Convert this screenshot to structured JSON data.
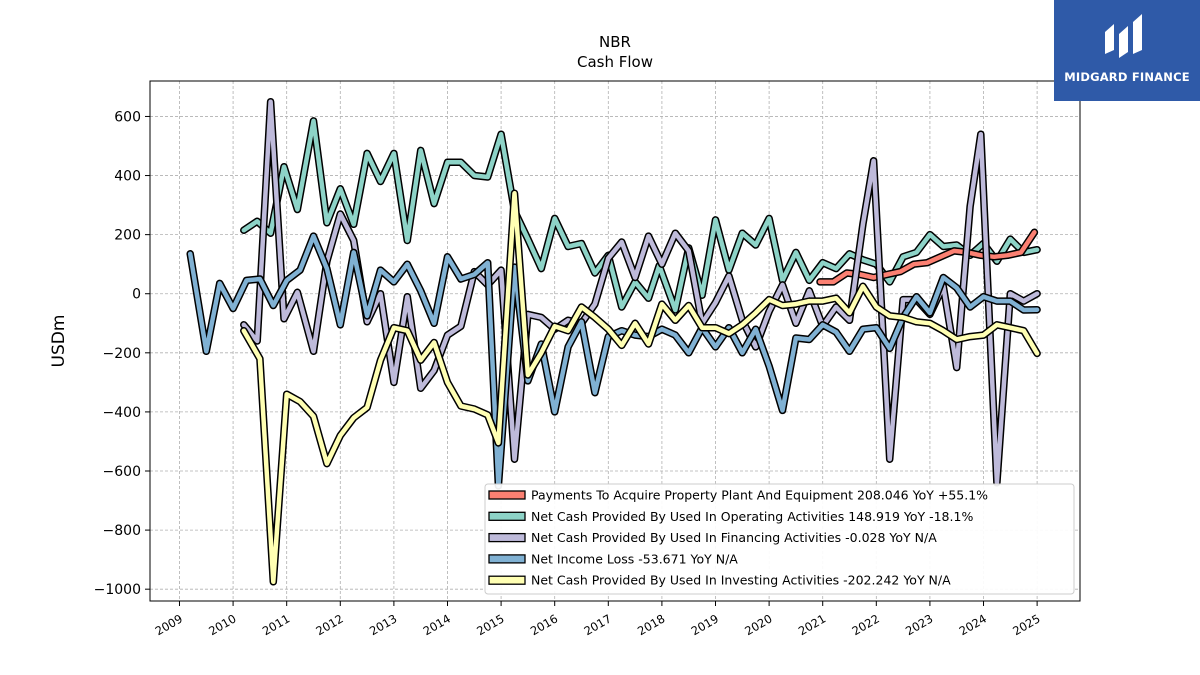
{
  "title": "NBR",
  "subtitle": "Cash Flow",
  "logo": {
    "text": "MIDGARD FINANCE",
    "bg": "#2f5aa8"
  },
  "chart_data": {
    "type": "line",
    "ylabel": "USDm",
    "ylim": [
      -1040,
      720
    ],
    "xlim": [
      2008.45,
      2025.8
    ],
    "yticks": [
      600,
      400,
      200,
      0,
      -200,
      -400,
      -600,
      -800,
      -1000
    ],
    "ytick_labels": [
      "600",
      "400",
      "200",
      "0",
      "−200",
      "−400",
      "−600",
      "−800",
      "−1000"
    ],
    "xticks": [
      2009,
      2010,
      2011,
      2012,
      2013,
      2014,
      2015,
      2016,
      2017,
      2018,
      2019,
      2020,
      2021,
      2022,
      2023,
      2024,
      2025
    ],
    "xtick_labels": [
      "2009",
      "2010",
      "2011",
      "2012",
      "2013",
      "2014",
      "2015",
      "2016",
      "2017",
      "2018",
      "2019",
      "2020",
      "2021",
      "2022",
      "2023",
      "2024",
      "2025"
    ],
    "grid": true,
    "legend_position": "bottom-right",
    "series": [
      {
        "name": "Net Cash Provided By Used In Operating Activities",
        "legend": "Net Cash Provided By Used In Operating Activities  148.919 YoY -18.1%",
        "color": "#8dd3c7",
        "points": [
          [
            2010.2,
            215
          ],
          [
            2010.45,
            245
          ],
          [
            2010.7,
            205
          ],
          [
            2010.95,
            430
          ],
          [
            2011.2,
            285
          ],
          [
            2011.5,
            585
          ],
          [
            2011.75,
            240
          ],
          [
            2012.0,
            355
          ],
          [
            2012.25,
            235
          ],
          [
            2012.5,
            475
          ],
          [
            2012.75,
            380
          ],
          [
            2013.0,
            475
          ],
          [
            2013.25,
            180
          ],
          [
            2013.5,
            485
          ],
          [
            2013.75,
            305
          ],
          [
            2014.0,
            445
          ],
          [
            2014.25,
            445
          ],
          [
            2014.5,
            400
          ],
          [
            2014.75,
            395
          ],
          [
            2015.0,
            540
          ],
          [
            2015.25,
            280
          ],
          [
            2015.5,
            185
          ],
          [
            2015.75,
            85
          ],
          [
            2016.0,
            255
          ],
          [
            2016.25,
            160
          ],
          [
            2016.5,
            170
          ],
          [
            2016.75,
            70
          ],
          [
            2017.0,
            130
          ],
          [
            2017.25,
            -45
          ],
          [
            2017.5,
            40
          ],
          [
            2017.75,
            -15
          ],
          [
            2017.95,
            95
          ],
          [
            2018.25,
            -55
          ],
          [
            2018.5,
            155
          ],
          [
            2018.75,
            -5
          ],
          [
            2019.0,
            250
          ],
          [
            2019.25,
            80
          ],
          [
            2019.5,
            205
          ],
          [
            2019.75,
            165
          ],
          [
            2020.0,
            255
          ],
          [
            2020.25,
            45
          ],
          [
            2020.5,
            140
          ],
          [
            2020.75,
            45
          ],
          [
            2021.0,
            105
          ],
          [
            2021.25,
            85
          ],
          [
            2021.5,
            135
          ],
          [
            2021.75,
            115
          ],
          [
            2022.0,
            100
          ],
          [
            2022.25,
            40
          ],
          [
            2022.5,
            125
          ],
          [
            2022.75,
            140
          ],
          [
            2023.0,
            200
          ],
          [
            2023.25,
            160
          ],
          [
            2023.5,
            165
          ],
          [
            2023.75,
            130
          ],
          [
            2024.0,
            170
          ],
          [
            2024.25,
            110
          ],
          [
            2024.5,
            185
          ],
          [
            2024.75,
            140
          ],
          [
            2025.0,
            149
          ]
        ]
      },
      {
        "name": "Payments To Acquire Property Plant And Equipment",
        "legend": "Payments To Acquire Property Plant And Equipment  208.046 YoY +55.1%",
        "color": "#fb8072",
        "points": [
          [
            2020.95,
            40
          ],
          [
            2021.2,
            40
          ],
          [
            2021.45,
            70
          ],
          [
            2021.7,
            65
          ],
          [
            2021.95,
            55
          ],
          [
            2022.2,
            65
          ],
          [
            2022.45,
            75
          ],
          [
            2022.7,
            100
          ],
          [
            2022.95,
            105
          ],
          [
            2023.2,
            125
          ],
          [
            2023.45,
            145
          ],
          [
            2023.7,
            140
          ],
          [
            2023.95,
            130
          ],
          [
            2024.2,
            125
          ],
          [
            2024.45,
            130
          ],
          [
            2024.7,
            140
          ],
          [
            2024.95,
            208
          ]
        ]
      },
      {
        "name": "Net Cash Provided By Used In Financing Activities",
        "legend": "Net Cash Provided By Used In Financing Activities  -0.028 YoY N/A",
        "color": "#bebada",
        "points": [
          [
            2010.2,
            -105
          ],
          [
            2010.45,
            -160
          ],
          [
            2010.7,
            650
          ],
          [
            2010.95,
            -85
          ],
          [
            2011.2,
            5
          ],
          [
            2011.5,
            -195
          ],
          [
            2011.75,
            110
          ],
          [
            2012.0,
            270
          ],
          [
            2012.25,
            180
          ],
          [
            2012.5,
            -95
          ],
          [
            2012.75,
            0
          ],
          [
            2013.0,
            -300
          ],
          [
            2013.25,
            -10
          ],
          [
            2013.5,
            -320
          ],
          [
            2013.75,
            -260
          ],
          [
            2014.0,
            -140
          ],
          [
            2014.25,
            -110
          ],
          [
            2014.5,
            75
          ],
          [
            2014.75,
            30
          ],
          [
            2015.0,
            80
          ],
          [
            2015.25,
            -560
          ],
          [
            2015.5,
            -70
          ],
          [
            2015.75,
            -80
          ],
          [
            2016.0,
            -120
          ],
          [
            2016.25,
            -90
          ],
          [
            2016.5,
            -100
          ],
          [
            2016.75,
            -35
          ],
          [
            2017.0,
            120
          ],
          [
            2017.25,
            175
          ],
          [
            2017.5,
            55
          ],
          [
            2017.75,
            195
          ],
          [
            2018.0,
            100
          ],
          [
            2018.25,
            205
          ],
          [
            2018.5,
            145
          ],
          [
            2018.75,
            -100
          ],
          [
            2019.0,
            -30
          ],
          [
            2019.25,
            60
          ],
          [
            2019.5,
            -90
          ],
          [
            2019.75,
            -180
          ],
          [
            2020.0,
            -60
          ],
          [
            2020.25,
            30
          ],
          [
            2020.5,
            -100
          ],
          [
            2020.75,
            10
          ],
          [
            2021.0,
            -110
          ],
          [
            2021.25,
            -45
          ],
          [
            2021.5,
            -90
          ],
          [
            2021.75,
            235
          ],
          [
            2021.95,
            450
          ],
          [
            2022.25,
            -560
          ],
          [
            2022.5,
            -20
          ],
          [
            2022.75,
            -20
          ],
          [
            2023.0,
            -70
          ],
          [
            2023.25,
            25
          ],
          [
            2023.5,
            -250
          ],
          [
            2023.75,
            295
          ],
          [
            2023.95,
            540
          ],
          [
            2024.25,
            -640
          ],
          [
            2024.5,
            0
          ],
          [
            2024.75,
            -25
          ],
          [
            2025.0,
            0
          ]
        ]
      },
      {
        "name": "Net Income Loss",
        "legend": "Net Income Loss  -53.671 YoY N/A",
        "color": "#80b1d3",
        "points": [
          [
            2009.2,
            135
          ],
          [
            2009.5,
            -195
          ],
          [
            2009.75,
            35
          ],
          [
            2010.0,
            -50
          ],
          [
            2010.25,
            45
          ],
          [
            2010.5,
            50
          ],
          [
            2010.75,
            -40
          ],
          [
            2011.0,
            45
          ],
          [
            2011.25,
            80
          ],
          [
            2011.5,
            195
          ],
          [
            2011.75,
            85
          ],
          [
            2012.0,
            -105
          ],
          [
            2012.25,
            140
          ],
          [
            2012.5,
            -75
          ],
          [
            2012.75,
            80
          ],
          [
            2013.0,
            40
          ],
          [
            2013.25,
            100
          ],
          [
            2013.5,
            10
          ],
          [
            2013.75,
            -100
          ],
          [
            2014.0,
            125
          ],
          [
            2014.25,
            50
          ],
          [
            2014.5,
            65
          ],
          [
            2014.75,
            105
          ],
          [
            2014.95,
            -650
          ],
          [
            2015.25,
            90
          ],
          [
            2015.5,
            -295
          ],
          [
            2015.75,
            -170
          ],
          [
            2016.0,
            -400
          ],
          [
            2016.25,
            -180
          ],
          [
            2016.5,
            -95
          ],
          [
            2016.75,
            -335
          ],
          [
            2017.0,
            -145
          ],
          [
            2017.25,
            -125
          ],
          [
            2017.5,
            -140
          ],
          [
            2017.75,
            -145
          ],
          [
            2018.0,
            -120
          ],
          [
            2018.25,
            -140
          ],
          [
            2018.5,
            -200
          ],
          [
            2018.75,
            -115
          ],
          [
            2019.0,
            -180
          ],
          [
            2019.25,
            -115
          ],
          [
            2019.5,
            -200
          ],
          [
            2019.75,
            -120
          ],
          [
            2020.0,
            -245
          ],
          [
            2020.25,
            -395
          ],
          [
            2020.5,
            -150
          ],
          [
            2020.75,
            -155
          ],
          [
            2021.0,
            -105
          ],
          [
            2021.25,
            -130
          ],
          [
            2021.5,
            -195
          ],
          [
            2021.75,
            -120
          ],
          [
            2022.0,
            -115
          ],
          [
            2022.25,
            -185
          ],
          [
            2022.5,
            -80
          ],
          [
            2022.75,
            -10
          ],
          [
            2023.0,
            -65
          ],
          [
            2023.25,
            55
          ],
          [
            2023.5,
            20
          ],
          [
            2023.75,
            -45
          ],
          [
            2024.0,
            -10
          ],
          [
            2024.25,
            -25
          ],
          [
            2024.5,
            -25
          ],
          [
            2024.75,
            -55
          ],
          [
            2025.0,
            -54
          ]
        ]
      },
      {
        "name": "Net Cash Provided By Used In Investing Activities",
        "legend": "Net Cash Provided By Used In Investing Activities  -202.242 YoY N/A",
        "color": "#ffffb3",
        "points": [
          [
            2010.2,
            -125
          ],
          [
            2010.5,
            -220
          ],
          [
            2010.75,
            -975
          ],
          [
            2011.0,
            -340
          ],
          [
            2011.25,
            -365
          ],
          [
            2011.5,
            -415
          ],
          [
            2011.75,
            -575
          ],
          [
            2012.0,
            -480
          ],
          [
            2012.25,
            -420
          ],
          [
            2012.5,
            -385
          ],
          [
            2012.75,
            -225
          ],
          [
            2013.0,
            -115
          ],
          [
            2013.25,
            -125
          ],
          [
            2013.5,
            -225
          ],
          [
            2013.75,
            -165
          ],
          [
            2014.0,
            -300
          ],
          [
            2014.25,
            -380
          ],
          [
            2014.5,
            -390
          ],
          [
            2014.75,
            -410
          ],
          [
            2014.95,
            -505
          ],
          [
            2015.25,
            340
          ],
          [
            2015.5,
            -275
          ],
          [
            2015.75,
            -200
          ],
          [
            2016.0,
            -110
          ],
          [
            2016.25,
            -125
          ],
          [
            2016.5,
            -45
          ],
          [
            2016.75,
            -80
          ],
          [
            2017.0,
            -120
          ],
          [
            2017.25,
            -175
          ],
          [
            2017.5,
            -100
          ],
          [
            2017.75,
            -170
          ],
          [
            2018.0,
            -35
          ],
          [
            2018.25,
            -90
          ],
          [
            2018.5,
            -40
          ],
          [
            2018.75,
            -115
          ],
          [
            2019.0,
            -115
          ],
          [
            2019.25,
            -135
          ],
          [
            2019.5,
            -105
          ],
          [
            2019.75,
            -65
          ],
          [
            2020.0,
            -20
          ],
          [
            2020.25,
            -40
          ],
          [
            2020.5,
            -35
          ],
          [
            2020.75,
            -25
          ],
          [
            2021.0,
            -25
          ],
          [
            2021.25,
            -15
          ],
          [
            2021.5,
            -65
          ],
          [
            2021.75,
            25
          ],
          [
            2022.0,
            -45
          ],
          [
            2022.25,
            -75
          ],
          [
            2022.5,
            -80
          ],
          [
            2022.75,
            -95
          ],
          [
            2023.0,
            -100
          ],
          [
            2023.25,
            -125
          ],
          [
            2023.5,
            -155
          ],
          [
            2023.75,
            -145
          ],
          [
            2024.0,
            -140
          ],
          [
            2024.25,
            -105
          ],
          [
            2024.5,
            -115
          ],
          [
            2024.75,
            -125
          ],
          [
            2025.0,
            -202
          ]
        ]
      }
    ]
  }
}
